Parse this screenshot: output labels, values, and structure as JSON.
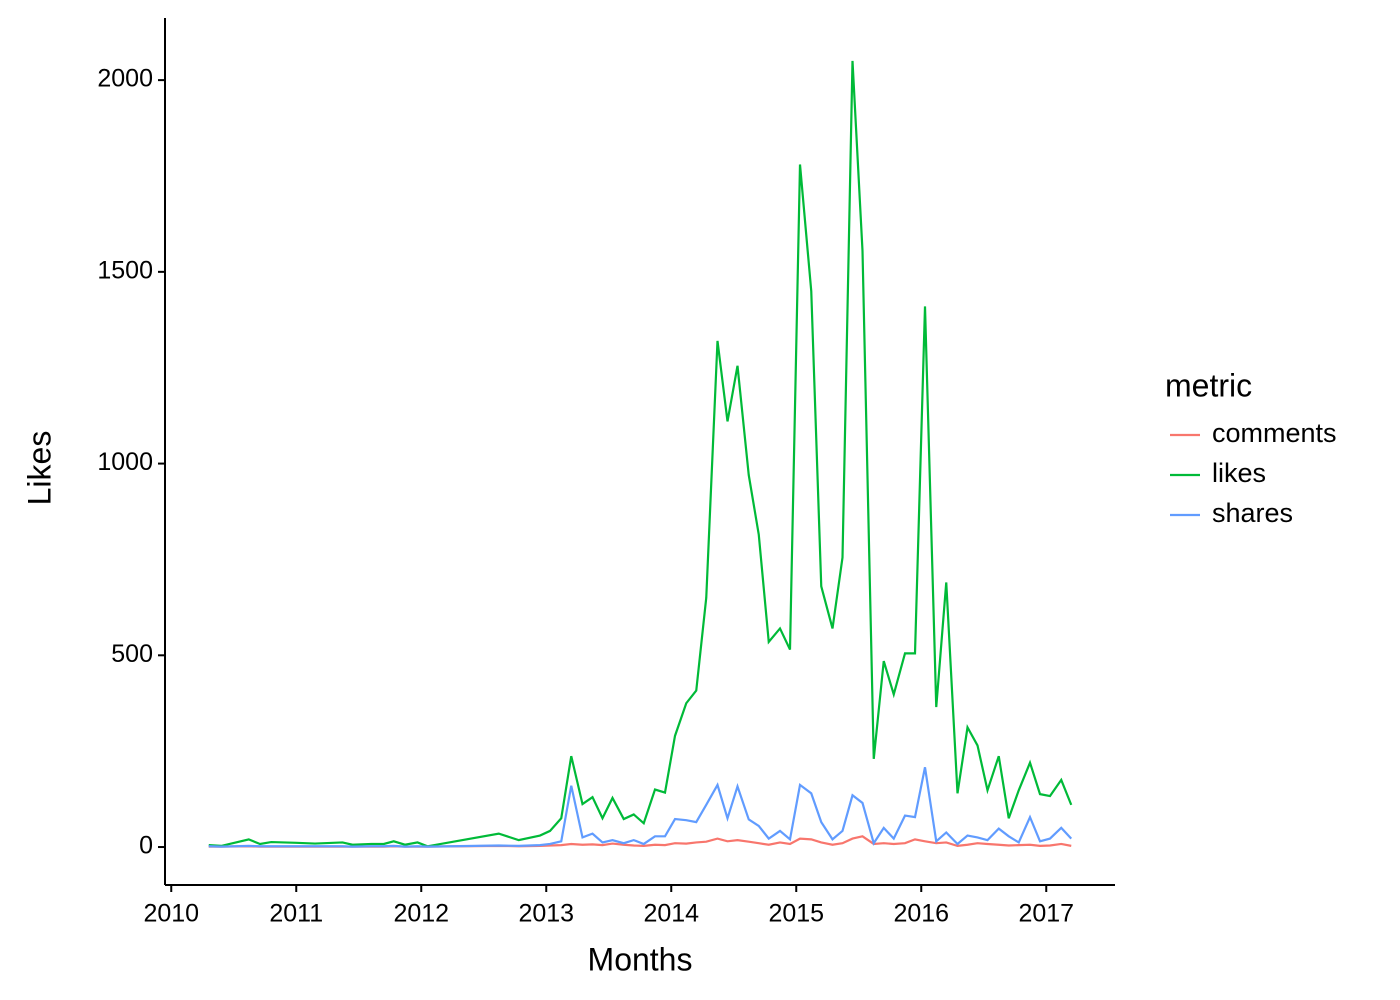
{
  "chart_data": {
    "type": "line",
    "x_label": "Months",
    "y_label": "Likes",
    "legend_title": "metric",
    "legend": "right",
    "x": [
      2010.3,
      2010.4,
      2010.62,
      2010.71,
      2010.8,
      2011.0,
      2011.15,
      2011.37,
      2011.45,
      2011.6,
      2011.7,
      2011.78,
      2011.87,
      2011.97,
      2012.05,
      2012.62,
      2012.78,
      2012.95,
      2013.03,
      2013.12,
      2013.2,
      2013.29,
      2013.37,
      2013.45,
      2013.53,
      2013.62,
      2013.7,
      2013.78,
      2013.87,
      2013.95,
      2014.03,
      2014.12,
      2014.2,
      2014.28,
      2014.37,
      2014.45,
      2014.53,
      2014.62,
      2014.7,
      2014.78,
      2014.87,
      2014.95,
      2015.03,
      2015.12,
      2015.2,
      2015.29,
      2015.37,
      2015.45,
      2015.53,
      2015.62,
      2015.7,
      2015.78,
      2015.87,
      2015.95,
      2016.03,
      2016.12,
      2016.2,
      2016.29,
      2016.37,
      2016.45,
      2016.53,
      2016.62,
      2016.7,
      2016.78,
      2016.87,
      2016.95,
      2017.03,
      2017.12,
      2017.2
    ],
    "series": [
      {
        "name": "comments",
        "color": "#F8766D",
        "values": [
          1,
          1,
          2,
          1,
          1,
          1,
          1,
          1,
          1,
          1,
          1,
          2,
          1,
          1,
          1,
          3,
          2,
          3,
          4,
          5,
          8,
          6,
          7,
          5,
          9,
          6,
          4,
          3,
          6,
          5,
          10,
          9,
          12,
          14,
          22,
          15,
          18,
          14,
          10,
          6,
          12,
          8,
          22,
          20,
          12,
          6,
          10,
          22,
          28,
          8,
          10,
          8,
          10,
          20,
          15,
          10,
          12,
          3,
          6,
          10,
          8,
          6,
          4,
          5,
          6,
          3,
          4,
          8,
          3
        ]
      },
      {
        "name": "likes",
        "color": "#00BA38",
        "values": [
          5,
          3,
          20,
          8,
          13,
          11,
          9,
          12,
          6,
          8,
          8,
          15,
          6,
          12,
          2,
          35,
          18,
          30,
          42,
          75,
          237,
          112,
          130,
          75,
          128,
          73,
          85,
          62,
          150,
          142,
          290,
          375,
          408,
          650,
          1320,
          1110,
          1255,
          970,
          815,
          535,
          570,
          515,
          1780,
          1450,
          680,
          570,
          755,
          2050,
          1555,
          230,
          485,
          398,
          505,
          505,
          1410,
          365,
          690,
          140,
          312,
          265,
          148,
          237,
          75,
          148,
          220,
          138,
          133,
          175,
          110
        ]
      },
      {
        "name": "shares",
        "color": "#619CFF",
        "values": [
          2,
          1,
          3,
          2,
          2,
          2,
          2,
          2,
          1,
          2,
          2,
          3,
          1,
          2,
          1,
          4,
          3,
          5,
          8,
          15,
          160,
          25,
          35,
          12,
          18,
          10,
          18,
          8,
          28,
          28,
          73,
          70,
          65,
          110,
          162,
          75,
          158,
          72,
          55,
          22,
          42,
          20,
          162,
          140,
          65,
          20,
          42,
          135,
          115,
          10,
          50,
          22,
          82,
          78,
          208,
          15,
          38,
          8,
          30,
          25,
          18,
          48,
          28,
          12,
          78,
          15,
          22,
          50,
          22
        ]
      }
    ],
    "xlim": [
      2009.95,
      2017.55
    ],
    "xticks": [
      2010,
      2011,
      2012,
      2013,
      2014,
      2015,
      2016,
      2017
    ],
    "ylim": [
      -99,
      2162
    ],
    "yticks": [
      0,
      500,
      1000,
      1500,
      2000
    ],
    "grid": false
  }
}
